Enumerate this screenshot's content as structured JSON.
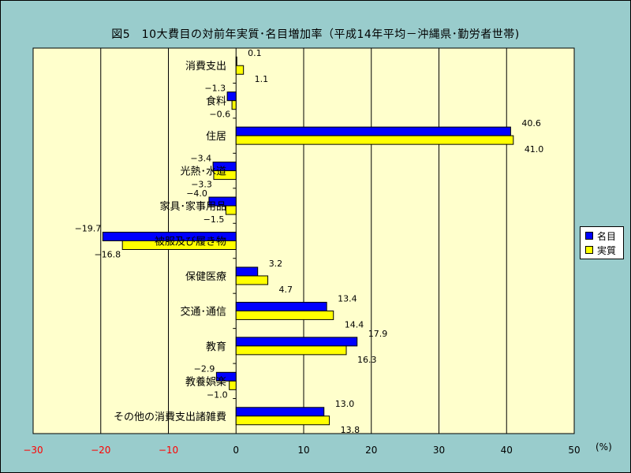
{
  "title": "図5　10大費目の対前年実質･名目増加率（平成14年平均－沖縄県･勤労者世帯)",
  "unit": "(%)",
  "colors": {
    "background": "#99cccc",
    "plot_bg": "#ffffcc",
    "nominal": "#0000ff",
    "real": "#ffff00",
    "negative_tick": "#ff0000"
  },
  "legend": [
    {
      "name": "名目",
      "color": "#0000ff"
    },
    {
      "name": "実質",
      "color": "#ffff00"
    }
  ],
  "chart_data": {
    "type": "bar",
    "orientation": "horizontal",
    "categories": [
      "消費支出",
      "食料",
      "住居",
      "光熱･水道",
      "家具･家事用品",
      "被服及び履き物",
      "保健医療",
      "交通･通信",
      "教育",
      "教養娯楽",
      "その他の消費支出諸雑費"
    ],
    "series": [
      {
        "name": "名目",
        "values": [
          0.1,
          -1.3,
          40.6,
          -3.4,
          -4.0,
          -19.7,
          3.2,
          13.4,
          17.9,
          -2.9,
          13.0
        ]
      },
      {
        "name": "実質",
        "values": [
          1.1,
          -0.6,
          41.0,
          -3.3,
          -1.5,
          -16.8,
          4.7,
          14.4,
          16.3,
          -1.0,
          13.8
        ]
      }
    ],
    "xlim": [
      -30,
      50
    ],
    "ticks": [
      -30,
      -20,
      -10,
      0,
      10,
      20,
      30,
      40,
      50
    ],
    "grid": true,
    "legend_position": "right"
  }
}
